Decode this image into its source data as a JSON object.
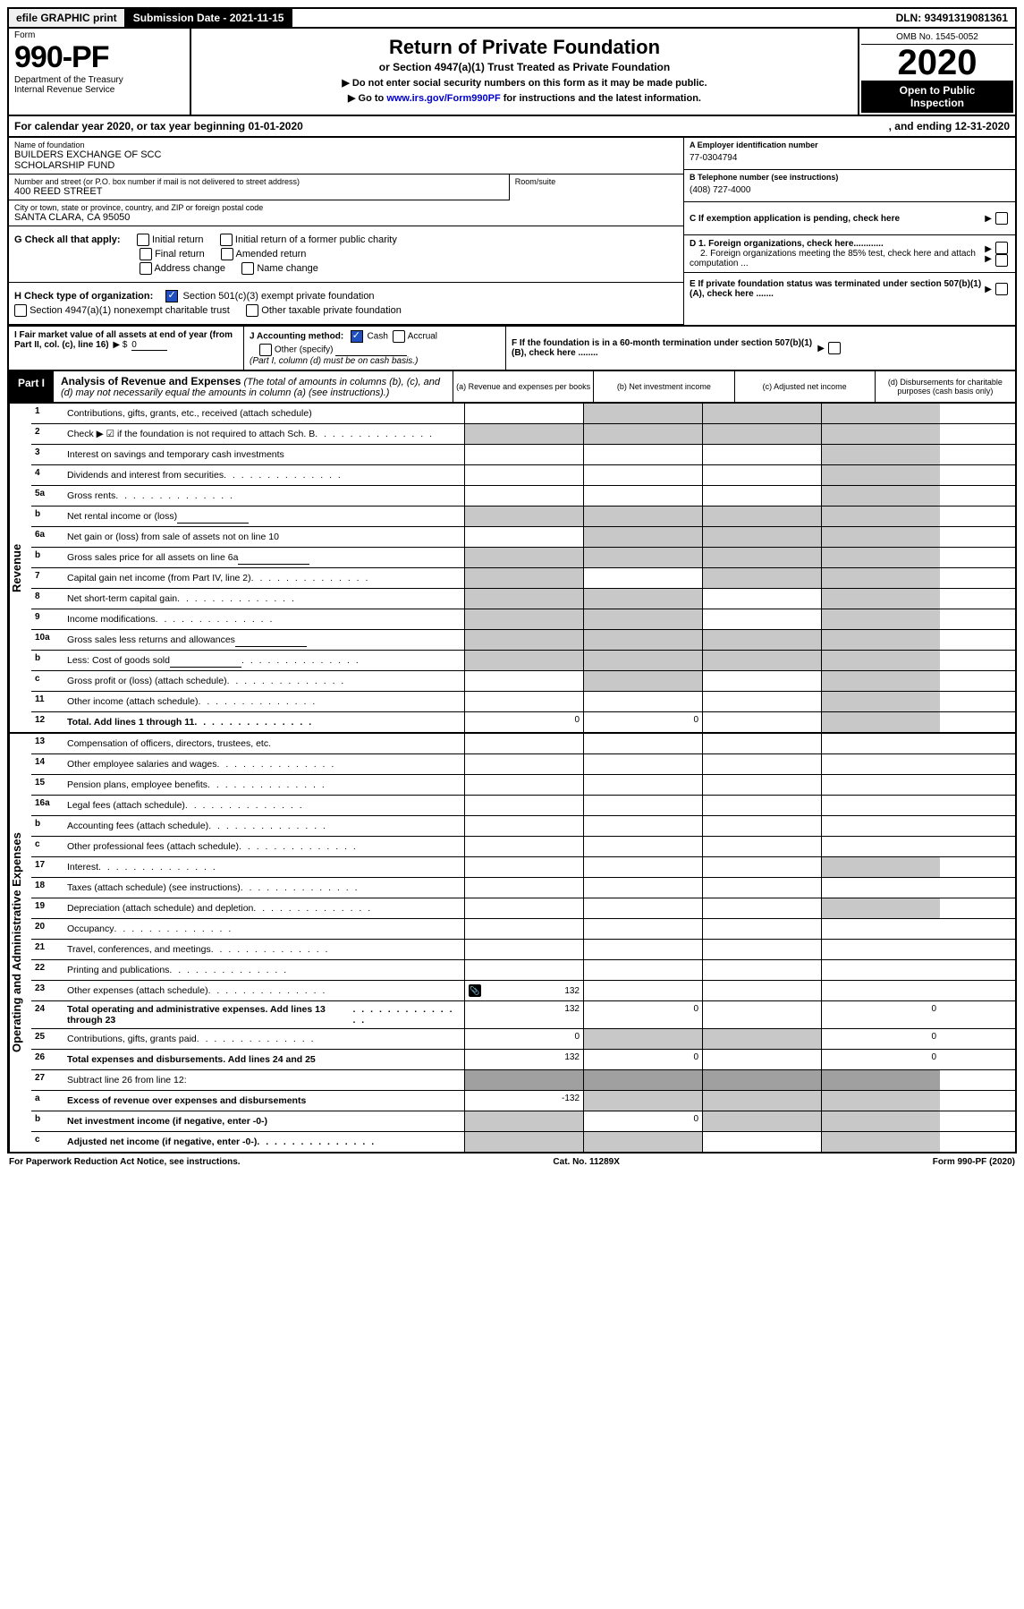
{
  "topbar": {
    "efile": "efile GRAPHIC print",
    "subdate_label": "Submission Date - ",
    "subdate": "2021-11-15",
    "dln_label": "DLN: ",
    "dln": "93491319081361"
  },
  "header": {
    "form_label": "Form",
    "form_no": "990-PF",
    "dept1": "Department of the Treasury",
    "dept2": "Internal Revenue Service",
    "title": "Return of Private Foundation",
    "subtitle": "or Section 4947(a)(1) Trust Treated as Private Foundation",
    "note1": "▶ Do not enter social security numbers on this form as it may be made public.",
    "note2_pre": "▶ Go to ",
    "note2_link": "www.irs.gov/Form990PF",
    "note2_post": " for instructions and the latest information.",
    "omb": "OMB No. 1545-0052",
    "year": "2020",
    "open1": "Open to Public",
    "open2": "Inspection"
  },
  "calyear": {
    "left": "For calendar year 2020, or tax year beginning 01-01-2020",
    "right": ", and ending 12-31-2020"
  },
  "info": {
    "name_label": "Name of foundation",
    "name1": "BUILDERS EXCHANGE OF SCC",
    "name2": "SCHOLARSHIP FUND",
    "addr_label": "Number and street (or P.O. box number if mail is not delivered to street address)",
    "addr": "400 REED STREET",
    "room_label": "Room/suite",
    "city_label": "City or town, state or province, country, and ZIP or foreign postal code",
    "city": "SANTA CLARA, CA  95050",
    "a_label": "A Employer identification number",
    "ein": "77-0304794",
    "b_label": "B Telephone number (see instructions)",
    "phone": "(408) 727-4000",
    "c_label": "C If exemption application is pending, check here",
    "d1": "D 1. Foreign organizations, check here............",
    "d2": "2. Foreign organizations meeting the 85% test, check here and attach computation ...",
    "e_label": "E If private foundation status was terminated under section 507(b)(1)(A), check here .......",
    "f_label": "F If the foundation is in a 60-month termination under section 507(b)(1)(B), check here ........"
  },
  "g": {
    "label": "G Check all that apply:",
    "o1": "Initial return",
    "o2": "Initial return of a former public charity",
    "o3": "Final return",
    "o4": "Amended return",
    "o5": "Address change",
    "o6": "Name change"
  },
  "h": {
    "label": "H Check type of organization:",
    "o1": "Section 501(c)(3) exempt private foundation",
    "o2": "Section 4947(a)(1) nonexempt charitable trust",
    "o3": "Other taxable private foundation"
  },
  "i": {
    "label": "I Fair market value of all assets at end of year (from Part II, col. (c), line 16)",
    "arrow": "▶ $",
    "val": "0"
  },
  "j": {
    "label": "J Accounting method:",
    "o1": "Cash",
    "o2": "Accrual",
    "o3": "Other (specify)",
    "note": "(Part I, column (d) must be on cash basis.)"
  },
  "part1": {
    "tab": "Part I",
    "title": "Analysis of Revenue and Expenses",
    "title_note": " (The total of amounts in columns (b), (c), and (d) may not necessarily equal the amounts in column (a) (see instructions).)",
    "col_a": "(a) Revenue and expenses per books",
    "col_b": "(b) Net investment income",
    "col_c": "(c) Adjusted net income",
    "col_d": "(d) Disbursements for charitable purposes (cash basis only)"
  },
  "side": {
    "revenue": "Revenue",
    "expenses": "Operating and Administrative Expenses"
  },
  "rows": [
    {
      "n": "1",
      "d": "Contributions, gifts, grants, etc., received (attach schedule)",
      "a": "",
      "b": "s",
      "c": "s",
      "da": "s"
    },
    {
      "n": "2",
      "d": "Check ▶ ☑ if the foundation is not required to attach Sch. B",
      "dots": true,
      "a": "s",
      "b": "s",
      "c": "s",
      "da": "s",
      "checked": true
    },
    {
      "n": "3",
      "d": "Interest on savings and temporary cash investments",
      "a": "",
      "b": "",
      "c": "",
      "da": "s"
    },
    {
      "n": "4",
      "d": "Dividends and interest from securities",
      "dots": true,
      "a": "",
      "b": "",
      "c": "",
      "da": "s"
    },
    {
      "n": "5a",
      "d": "Gross rents",
      "dots": true,
      "a": "",
      "b": "",
      "c": "",
      "da": "s"
    },
    {
      "n": "b",
      "d": "Net rental income or (loss)",
      "field": true,
      "a": "s",
      "b": "s",
      "c": "s",
      "da": "s"
    },
    {
      "n": "6a",
      "d": "Net gain or (loss) from sale of assets not on line 10",
      "a": "",
      "b": "s",
      "c": "s",
      "da": "s"
    },
    {
      "n": "b",
      "d": "Gross sales price for all assets on line 6a",
      "field": true,
      "a": "s",
      "b": "s",
      "c": "s",
      "da": "s"
    },
    {
      "n": "7",
      "d": "Capital gain net income (from Part IV, line 2)",
      "dots": true,
      "a": "s",
      "b": "",
      "c": "s",
      "da": "s"
    },
    {
      "n": "8",
      "d": "Net short-term capital gain",
      "dots": true,
      "a": "s",
      "b": "s",
      "c": "",
      "da": "s"
    },
    {
      "n": "9",
      "d": "Income modifications",
      "dots": true,
      "a": "s",
      "b": "s",
      "c": "",
      "da": "s"
    },
    {
      "n": "10a",
      "d": "Gross sales less returns and allowances",
      "field": true,
      "a": "s",
      "b": "s",
      "c": "s",
      "da": "s"
    },
    {
      "n": "b",
      "d": "Less: Cost of goods sold",
      "dots": true,
      "field": true,
      "a": "s",
      "b": "s",
      "c": "s",
      "da": "s"
    },
    {
      "n": "c",
      "d": "Gross profit or (loss) (attach schedule)",
      "dots": true,
      "a": "",
      "b": "s",
      "c": "",
      "da": "s"
    },
    {
      "n": "11",
      "d": "Other income (attach schedule)",
      "dots": true,
      "a": "",
      "b": "",
      "c": "",
      "da": "s"
    },
    {
      "n": "12",
      "d": "Total. Add lines 1 through 11",
      "dots": true,
      "bold": true,
      "a": "0",
      "b": "0",
      "c": "",
      "da": "s"
    }
  ],
  "rows2": [
    {
      "n": "13",
      "d": "Compensation of officers, directors, trustees, etc.",
      "a": "",
      "b": "",
      "c": "",
      "da": ""
    },
    {
      "n": "14",
      "d": "Other employee salaries and wages",
      "dots": true,
      "a": "",
      "b": "",
      "c": "",
      "da": ""
    },
    {
      "n": "15",
      "d": "Pension plans, employee benefits",
      "dots": true,
      "a": "",
      "b": "",
      "c": "",
      "da": ""
    },
    {
      "n": "16a",
      "d": "Legal fees (attach schedule)",
      "dots": true,
      "a": "",
      "b": "",
      "c": "",
      "da": ""
    },
    {
      "n": "b",
      "d": "Accounting fees (attach schedule)",
      "dots": true,
      "a": "",
      "b": "",
      "c": "",
      "da": ""
    },
    {
      "n": "c",
      "d": "Other professional fees (attach schedule)",
      "dots": true,
      "a": "",
      "b": "",
      "c": "",
      "da": ""
    },
    {
      "n": "17",
      "d": "Interest",
      "dots": true,
      "a": "",
      "b": "",
      "c": "",
      "da": "s"
    },
    {
      "n": "18",
      "d": "Taxes (attach schedule) (see instructions)",
      "dots": true,
      "a": "",
      "b": "",
      "c": "",
      "da": ""
    },
    {
      "n": "19",
      "d": "Depreciation (attach schedule) and depletion",
      "dots": true,
      "a": "",
      "b": "",
      "c": "",
      "da": "s"
    },
    {
      "n": "20",
      "d": "Occupancy",
      "dots": true,
      "a": "",
      "b": "",
      "c": "",
      "da": ""
    },
    {
      "n": "21",
      "d": "Travel, conferences, and meetings",
      "dots": true,
      "a": "",
      "b": "",
      "c": "",
      "da": ""
    },
    {
      "n": "22",
      "d": "Printing and publications",
      "dots": true,
      "a": "",
      "b": "",
      "c": "",
      "da": ""
    },
    {
      "n": "23",
      "d": "Other expenses (attach schedule)",
      "dots": true,
      "clip": true,
      "a": "132",
      "b": "",
      "c": "",
      "da": ""
    },
    {
      "n": "24",
      "d": "Total operating and administrative expenses. Add lines 13 through 23",
      "dots": true,
      "bold": true,
      "a": "132",
      "b": "0",
      "c": "",
      "da": "0"
    },
    {
      "n": "25",
      "d": "Contributions, gifts, grants paid",
      "dots": true,
      "a": "0",
      "b": "s",
      "c": "s",
      "da": "0"
    },
    {
      "n": "26",
      "d": "Total expenses and disbursements. Add lines 24 and 25",
      "bold": true,
      "a": "132",
      "b": "0",
      "c": "",
      "da": "0"
    },
    {
      "n": "27",
      "d": "Subtract line 26 from line 12:",
      "a": "s2",
      "b": "s2",
      "c": "s2",
      "da": "s2"
    },
    {
      "n": "a",
      "d": "Excess of revenue over expenses and disbursements",
      "bold": true,
      "a": "-132",
      "b": "s",
      "c": "s",
      "da": "s"
    },
    {
      "n": "b",
      "d": "Net investment income (if negative, enter -0-)",
      "bold": true,
      "a": "s",
      "b": "0",
      "c": "s",
      "da": "s"
    },
    {
      "n": "c",
      "d": "Adjusted net income (if negative, enter -0-)",
      "dots": true,
      "bold": true,
      "a": "s",
      "b": "s",
      "c": "",
      "da": "s"
    }
  ],
  "footer": {
    "left": "For Paperwork Reduction Act Notice, see instructions.",
    "mid": "Cat. No. 11289X",
    "right": "Form 990-PF (2020)"
  }
}
